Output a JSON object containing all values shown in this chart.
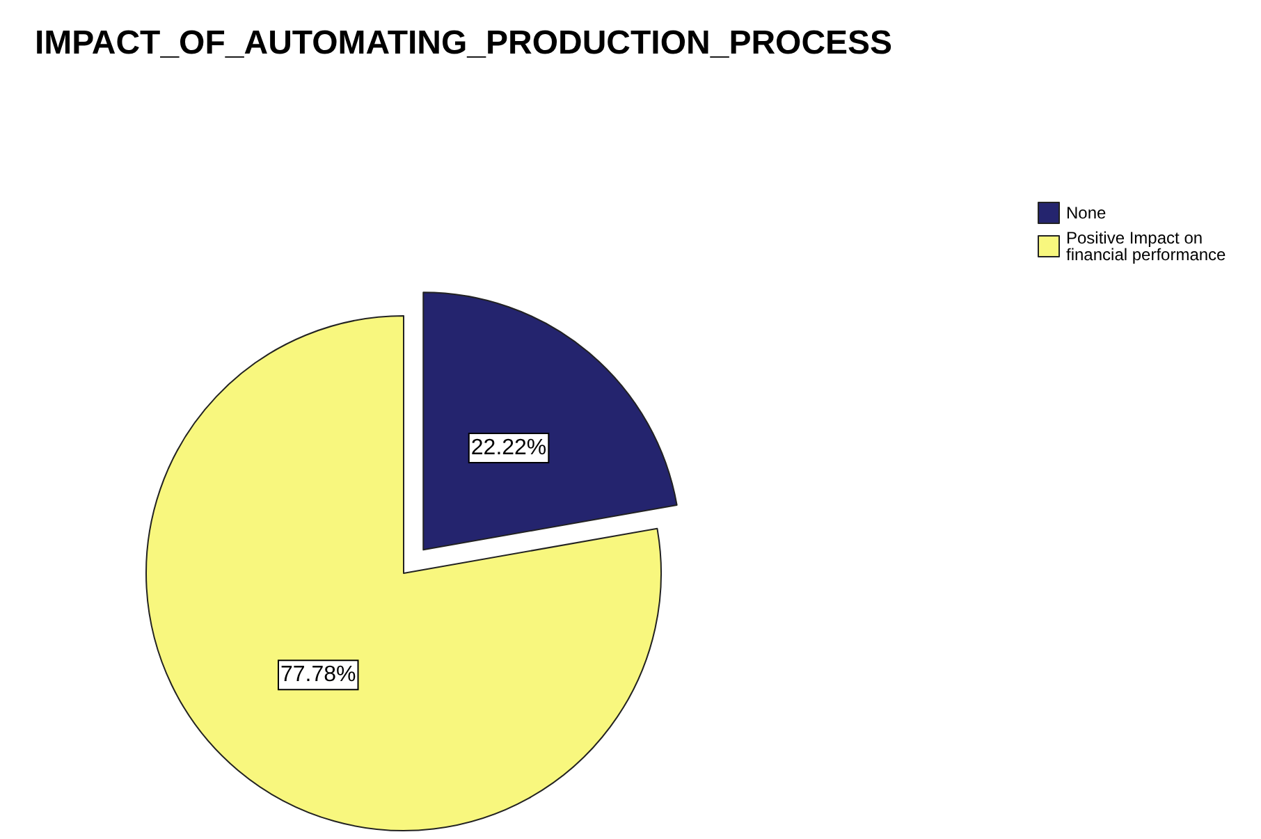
{
  "chart_data": {
    "type": "pie",
    "title": "IMPACT_OF_AUTOMATING_PRODUCTION_PROCESS",
    "categories": [
      "None",
      "Positive Impact on financial performance"
    ],
    "values": [
      22.22,
      77.78
    ],
    "colors": [
      "#24246e",
      "#f8f77e"
    ],
    "value_labels": [
      "22.22%",
      "77.78%"
    ],
    "legend": "top right"
  }
}
